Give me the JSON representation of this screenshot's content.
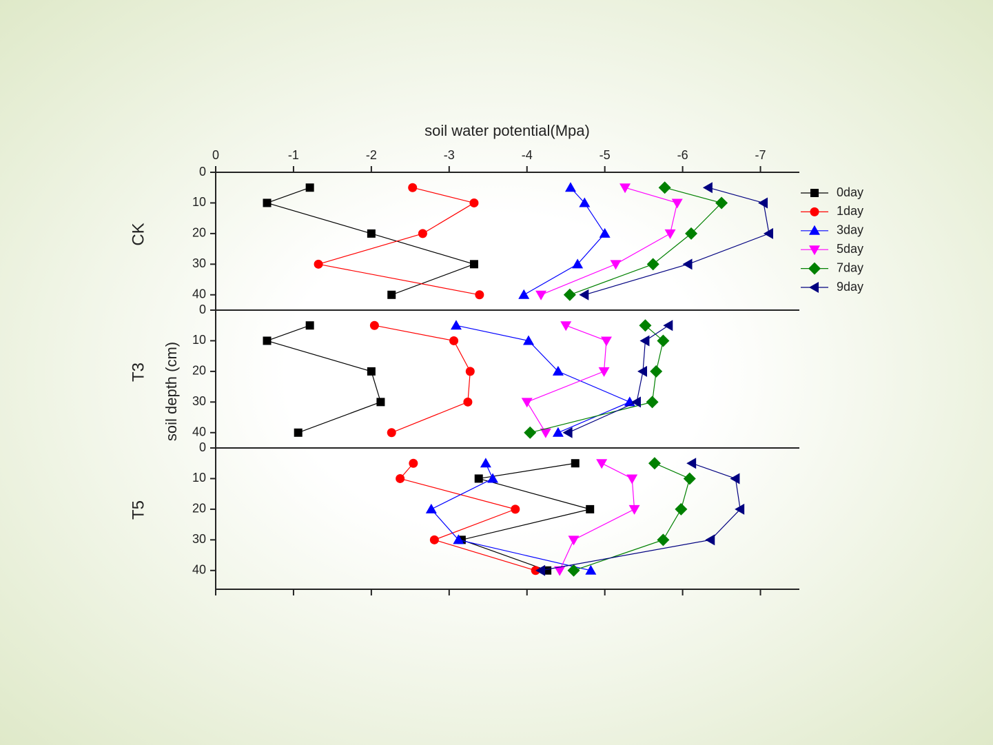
{
  "chart_data": {
    "type": "line",
    "xlabel": "soil water potential(Mpa)",
    "ylabel": "soil depth (cm)",
    "xlim": [
      0,
      -7.5
    ],
    "xticks": [
      0,
      -1,
      -2,
      -3,
      -4,
      -5,
      -6,
      -7
    ],
    "series": [
      {
        "name": "0day",
        "color": "#000000",
        "marker": "square"
      },
      {
        "name": "1day",
        "color": "#ff0000",
        "marker": "circle"
      },
      {
        "name": "3day",
        "color": "#0000ff",
        "marker": "triangle-up"
      },
      {
        "name": "5day",
        "color": "#ff00ff",
        "marker": "triangle-down"
      },
      {
        "name": "7day",
        "color": "#008000",
        "marker": "diamond"
      },
      {
        "name": "9day",
        "color": "#000080",
        "marker": "triangle-left"
      }
    ],
    "panels": [
      {
        "name": "CK",
        "ylim": [
          0,
          45
        ],
        "yticks": [
          0,
          10,
          20,
          30,
          40
        ],
        "depths": [
          5,
          10,
          20,
          30,
          40
        ],
        "values": [
          [
            -1.21,
            -0.66,
            -2.0,
            -3.32,
            -2.26
          ],
          [
            -2.53,
            -3.32,
            -2.66,
            -1.32,
            -3.39
          ],
          [
            -4.56,
            -4.74,
            -5.0,
            -4.65,
            -3.96
          ],
          [
            -5.26,
            -5.93,
            -5.84,
            -5.14,
            -4.18
          ],
          [
            -5.77,
            -6.5,
            -6.11,
            -5.62,
            -4.55
          ],
          [
            -6.33,
            -7.04,
            -7.11,
            -6.07,
            -4.74
          ]
        ]
      },
      {
        "name": "T3",
        "ylim": [
          0,
          45
        ],
        "yticks": [
          0,
          10,
          20,
          30,
          40
        ],
        "depths": [
          5,
          10,
          20,
          30,
          40
        ],
        "values": [
          [
            -1.21,
            -0.66,
            -2.0,
            -2.12,
            -1.06
          ],
          [
            -2.04,
            -3.06,
            -3.27,
            -3.24,
            -2.26
          ],
          [
            -3.09,
            -4.02,
            -4.4,
            -5.32,
            -4.4
          ],
          [
            -4.5,
            -5.02,
            -4.99,
            -4.0,
            -4.24
          ],
          [
            -5.52,
            -5.75,
            -5.66,
            -5.61,
            -4.04
          ],
          [
            -5.82,
            -5.52,
            -5.49,
            -5.41,
            -4.53
          ]
        ]
      },
      {
        "name": "T5",
        "ylim": [
          0,
          45
        ],
        "yticks": [
          0,
          10,
          20,
          30,
          40
        ],
        "depths": [
          5,
          10,
          20,
          30,
          40
        ],
        "values": [
          [
            -4.62,
            -3.38,
            -4.81,
            -3.16,
            -4.26
          ],
          [
            -2.54,
            -2.37,
            -3.85,
            -2.81,
            -4.11
          ],
          [
            -3.47,
            -3.56,
            -2.77,
            -3.12,
            -4.82
          ],
          [
            -4.96,
            -5.35,
            -5.38,
            -4.6,
            -4.42
          ],
          [
            -5.64,
            -6.09,
            -5.98,
            -5.75,
            -4.6
          ],
          [
            -6.12,
            -6.68,
            -6.74,
            -6.36,
            -4.18
          ]
        ]
      }
    ]
  }
}
